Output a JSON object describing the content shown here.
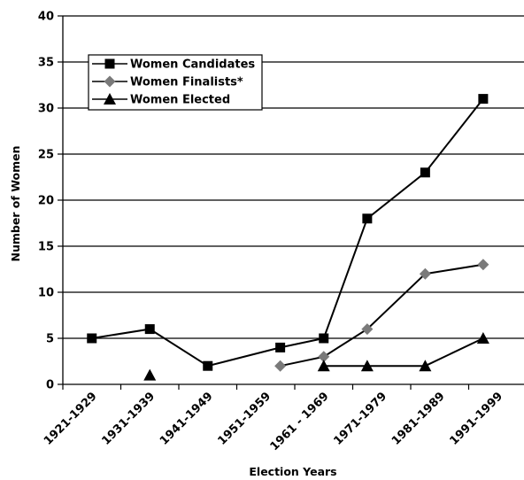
{
  "chart_data": {
    "type": "line",
    "xlabel": "Election Years",
    "ylabel": "Number of Women",
    "categories": [
      "1921-1929",
      "1931-1939",
      "1941-1949",
      "1951-1959",
      "1961 - 1969",
      "1971-1979",
      "1981-1989",
      "1991-1999"
    ],
    "ylim": [
      0,
      40
    ],
    "yticks": [
      "0",
      "5",
      "10",
      "15",
      "20",
      "25",
      "30",
      "35",
      "40"
    ],
    "grid": true,
    "legend_position": "top-left",
    "series": [
      {
        "name": "Women Candidates",
        "marker": "square",
        "color": "#000000",
        "points": [
          {
            "x": 0.0,
            "y": 5
          },
          {
            "x": 1.0,
            "y": 6
          },
          {
            "x": 2.0,
            "y": 2
          },
          {
            "x": 3.25,
            "y": 4
          },
          {
            "x": 4.0,
            "y": 5
          },
          {
            "x": 4.75,
            "y": 18
          },
          {
            "x": 5.75,
            "y": 23
          },
          {
            "x": 6.75,
            "y": 31
          }
        ]
      },
      {
        "name": "Women Finalists*",
        "marker": "diamond",
        "color": "#7a7a7a",
        "points": [
          {
            "x": 3.25,
            "y": 2
          },
          {
            "x": 4.0,
            "y": 3
          },
          {
            "x": 4.75,
            "y": 6
          },
          {
            "x": 5.75,
            "y": 12
          },
          {
            "x": 6.75,
            "y": 13
          }
        ]
      },
      {
        "name": "Women Elected",
        "marker": "triangle",
        "color": "#000000",
        "points": [
          {
            "x": 1.0,
            "y": 1
          },
          {
            "x": 4.0,
            "y": 2
          },
          {
            "x": 4.75,
            "y": 2
          },
          {
            "x": 5.75,
            "y": 2
          },
          {
            "x": 6.75,
            "y": 5
          }
        ],
        "connect_from_index": 1
      }
    ]
  }
}
